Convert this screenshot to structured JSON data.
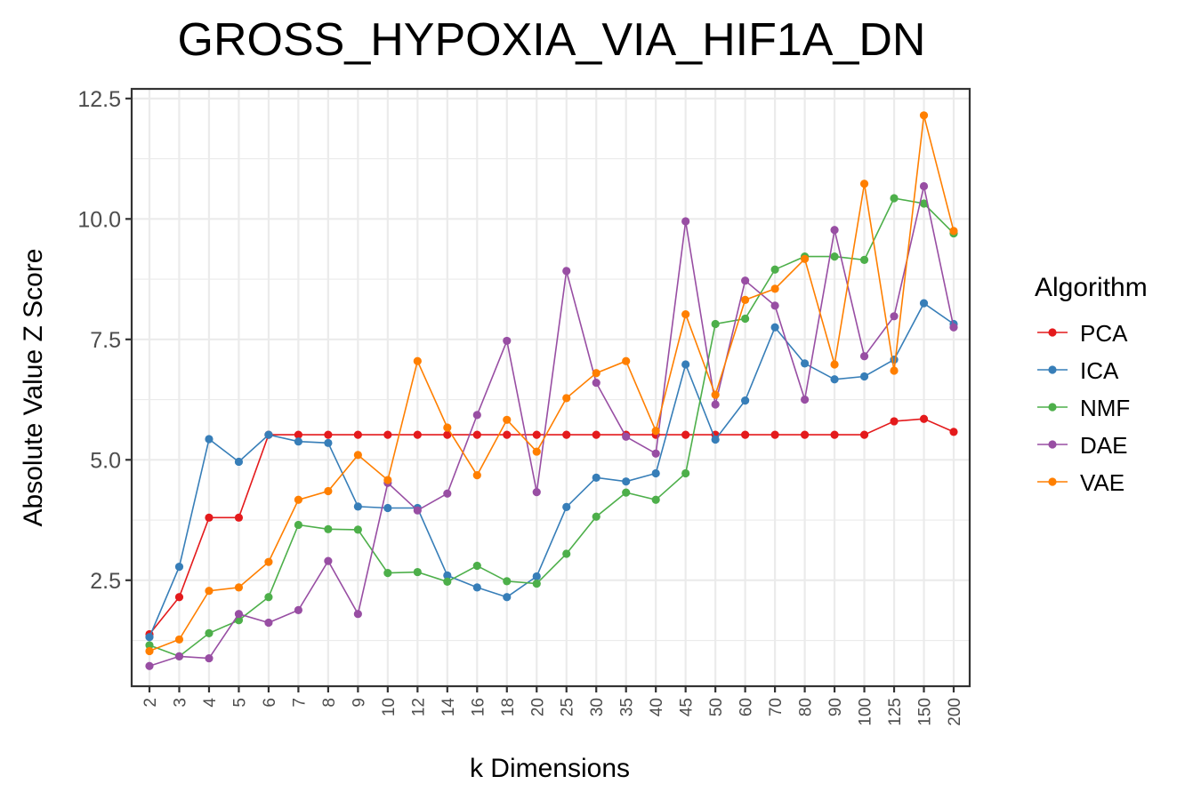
{
  "chart_data": {
    "type": "line",
    "title": "GROSS_HYPOXIA_VIA_HIF1A_DN",
    "xlabel": "k Dimensions",
    "ylabel": "Absolute Value Z Score",
    "categories": [
      "2",
      "3",
      "4",
      "5",
      "6",
      "7",
      "8",
      "9",
      "10",
      "12",
      "14",
      "16",
      "18",
      "20",
      "25",
      "30",
      "35",
      "40",
      "45",
      "50",
      "60",
      "70",
      "80",
      "90",
      "100",
      "125",
      "150",
      "200"
    ],
    "yticks": [
      "2.5",
      "5.0",
      "7.5",
      "10.0",
      "12.5"
    ],
    "ylim": [
      0.3,
      12.7
    ],
    "grid": true,
    "legend": {
      "title": "Algorithm",
      "position": "right"
    },
    "series": [
      {
        "name": "PCA",
        "color": "#e41a1c",
        "values": [
          1.38,
          2.15,
          3.8,
          3.8,
          5.52,
          5.52,
          5.52,
          5.52,
          5.52,
          5.52,
          5.52,
          5.52,
          5.52,
          5.52,
          5.52,
          5.52,
          5.52,
          5.52,
          5.52,
          5.52,
          5.52,
          5.52,
          5.52,
          5.52,
          5.52,
          5.8,
          5.85,
          5.58
        ]
      },
      {
        "name": "ICA",
        "color": "#377eb8",
        "values": [
          1.32,
          2.78,
          5.43,
          4.96,
          5.52,
          5.38,
          5.35,
          4.03,
          4.0,
          4.0,
          2.6,
          2.35,
          2.15,
          2.58,
          4.02,
          4.63,
          4.55,
          4.72,
          6.98,
          5.42,
          6.23,
          7.75,
          7.0,
          6.67,
          6.73,
          7.08,
          8.25,
          7.82
        ]
      },
      {
        "name": "NMF",
        "color": "#4daf4a",
        "values": [
          1.15,
          0.92,
          1.4,
          1.67,
          2.15,
          3.65,
          3.56,
          3.55,
          2.65,
          2.67,
          2.47,
          2.8,
          2.48,
          2.43,
          3.05,
          3.82,
          4.32,
          4.17,
          4.72,
          7.82,
          7.93,
          8.95,
          9.22,
          9.22,
          9.15,
          10.43,
          10.32,
          9.7
        ]
      },
      {
        "name": "DAE",
        "color": "#984ea3",
        "values": [
          0.72,
          0.92,
          0.88,
          1.8,
          1.62,
          1.88,
          2.9,
          1.8,
          4.52,
          3.95,
          4.3,
          5.93,
          7.47,
          4.33,
          8.92,
          6.6,
          5.48,
          5.13,
          9.95,
          6.15,
          8.72,
          8.2,
          6.25,
          9.77,
          7.15,
          7.98,
          10.68,
          7.75
        ]
      },
      {
        "name": "VAE",
        "color": "#ff7f00",
        "values": [
          1.03,
          1.27,
          2.28,
          2.35,
          2.88,
          4.17,
          4.35,
          5.1,
          4.58,
          7.05,
          5.67,
          4.68,
          5.83,
          5.17,
          6.28,
          6.8,
          7.05,
          5.6,
          8.02,
          6.35,
          8.32,
          8.55,
          9.17,
          6.98,
          10.73,
          6.85,
          12.15,
          9.75
        ]
      }
    ]
  }
}
